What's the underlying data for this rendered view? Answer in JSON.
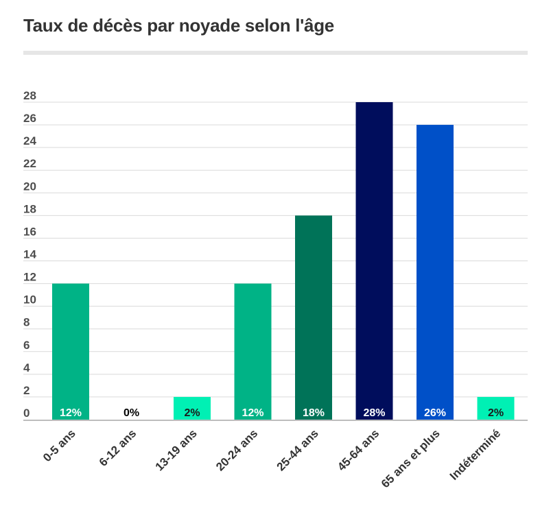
{
  "chart_data": {
    "type": "bar",
    "title": "Taux de décès par noyade selon l'âge",
    "categories": [
      "0-5 ans",
      "6-12 ans",
      "13-19 ans",
      "20-24 ans",
      "25-44 ans",
      "45-64 ans",
      "65 ans et plus",
      "Indéterminé"
    ],
    "values": [
      12,
      0,
      2,
      12,
      18,
      28,
      26,
      2
    ],
    "data_labels": [
      "12%",
      "0%",
      "2%",
      "12%",
      "18%",
      "28%",
      "26%",
      "2%"
    ],
    "colors": [
      "#00b386",
      "#00b386",
      "#00f0b4",
      "#00b386",
      "#007358",
      "#000d5c",
      "#0050c8",
      "#00f0b4"
    ],
    "label_colors": [
      "#ffffff",
      "#000000",
      "#1a1a1a",
      "#ffffff",
      "#ffffff",
      "#ffffff",
      "#ffffff",
      "#1a1a1a"
    ],
    "y_ticks": [
      "0",
      "2",
      "4",
      "6",
      "8",
      "10",
      "12",
      "14",
      "16",
      "18",
      "20",
      "22",
      "24",
      "26",
      "28"
    ],
    "ylim": [
      0,
      28
    ],
    "grid": true,
    "legend": "none",
    "xlabel": "",
    "ylabel": ""
  }
}
